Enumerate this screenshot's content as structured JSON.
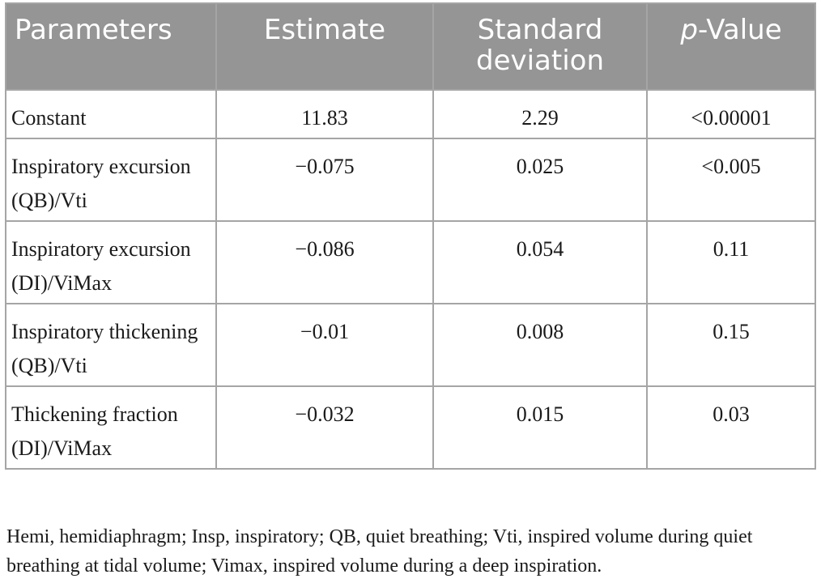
{
  "table": {
    "headers": {
      "parameters": "Parameters",
      "estimate": "Estimate",
      "std_dev": "Standard deviation",
      "p_value_prefix": "p",
      "p_value_suffix": "-Value"
    },
    "rows": [
      {
        "parameter": "Constant",
        "estimate": "11.83",
        "std_dev": "2.29",
        "p_value": "<0.00001"
      },
      {
        "parameter": "Inspiratory excursion (QB)/Vti",
        "estimate": "−0.075",
        "std_dev": "0.025",
        "p_value": "<0.005"
      },
      {
        "parameter": "Inspiratory excursion (DI)/ViMax",
        "estimate": "−0.086",
        "std_dev": "0.054",
        "p_value": "0.11"
      },
      {
        "parameter": "Inspiratory thickening (QB)/Vti",
        "estimate": "−0.01",
        "std_dev": "0.008",
        "p_value": "0.15"
      },
      {
        "parameter": "Thickening fraction (DI)/ViMax",
        "estimate": "−0.032",
        "std_dev": "0.015",
        "p_value": "0.03"
      }
    ]
  },
  "footnote": "Hemi, hemidiaphragm; Insp, inspiratory; QB, quiet breathing; Vti, inspired volume during quiet breathing at tidal volume; Vimax, inspired volume during a deep inspiration.",
  "colors": {
    "header_bg": "#959595",
    "header_text": "#ffffff",
    "border": "#a5a5a5",
    "body_text": "#1a1a1a"
  }
}
